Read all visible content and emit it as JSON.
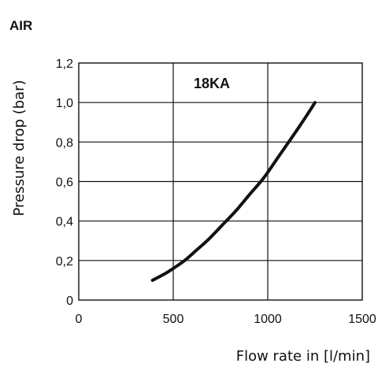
{
  "chart_data": {
    "type": "line",
    "title": "AIR",
    "xlabel": "Flow rate in [l/min]",
    "ylabel": "Pressure drop (bar)",
    "xlim": [
      0,
      1500
    ],
    "ylim": [
      0,
      1.2
    ],
    "x_ticks": [
      "0",
      "500",
      "1000",
      "1500"
    ],
    "y_ticks": [
      "0",
      "0,2",
      "0,4",
      "0,6",
      "0,8",
      "1,0",
      "1,2"
    ],
    "grid": true,
    "annotation": "18KA",
    "series": [
      {
        "x": [
          390,
          450,
          500,
          560,
          620,
          690,
          760,
          830,
          900,
          980,
          1060,
          1140,
          1210,
          1250
        ],
        "y": [
          0.1,
          0.13,
          0.16,
          0.2,
          0.25,
          0.31,
          0.38,
          0.45,
          0.53,
          0.62,
          0.73,
          0.84,
          0.94,
          1.0
        ]
      }
    ]
  }
}
